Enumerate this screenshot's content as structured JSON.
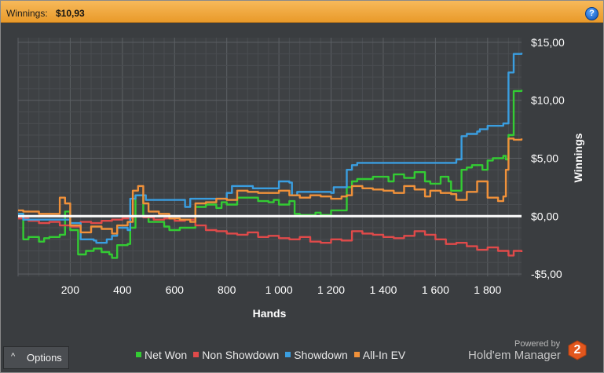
{
  "header": {
    "label": "Winnings:",
    "value": "$10,93",
    "help_icon": "help-icon",
    "help_glyph": "?"
  },
  "chart_data": {
    "type": "line",
    "xlabel": "Hands",
    "ylabel": "Winnings",
    "xlim": [
      0,
      1930
    ],
    "ylim": [
      -5.2,
      15.4
    ],
    "x_ticks": [
      200,
      400,
      600,
      800,
      1000,
      1200,
      1400,
      1600,
      1800
    ],
    "x_tick_labels": [
      "200",
      "400",
      "600",
      "800",
      "1 000",
      "1 200",
      "1 400",
      "1 600",
      "1 800"
    ],
    "y_ticks": [
      15,
      10,
      5,
      0,
      -5
    ],
    "y_tick_labels": [
      "$15,00",
      "$10,00",
      "$5,00",
      "$0,00",
      "-$5,00"
    ],
    "grid": true,
    "legend_position": "bottom",
    "series": [
      {
        "name": "Net Won",
        "color": "#33cc33",
        "x": [
          0,
          20,
          40,
          80,
          100,
          120,
          160,
          180,
          200,
          230,
          260,
          290,
          320,
          350,
          360,
          380,
          420,
          430,
          450,
          480,
          500,
          560,
          580,
          620,
          660,
          680,
          720,
          760,
          780,
          800,
          840,
          880,
          920,
          960,
          980,
          1000,
          1040,
          1060,
          1080,
          1140,
          1160,
          1200,
          1250,
          1260,
          1280,
          1300,
          1360,
          1420,
          1440,
          1480,
          1520,
          1560,
          1580,
          1620,
          1650,
          1660,
          1700,
          1720,
          1740,
          1780,
          1800,
          1820,
          1860,
          1870,
          1880,
          1900,
          1930
        ],
        "y": [
          0.2,
          -2.0,
          -1.8,
          -2.2,
          -1.9,
          -1.8,
          -1.6,
          0.4,
          -1.2,
          -3.3,
          -3.0,
          -2.8,
          -3.1,
          -3.3,
          -3.6,
          -2.5,
          -2.4,
          -1.0,
          1.8,
          0.0,
          -0.5,
          -0.9,
          -1.2,
          -1.0,
          -1.0,
          0.8,
          1.0,
          0.7,
          1.2,
          1.0,
          1.6,
          1.6,
          1.3,
          1.2,
          1.4,
          1.0,
          1.3,
          0.2,
          0.1,
          0.3,
          0.1,
          0.5,
          0.5,
          2.5,
          3.0,
          3.2,
          3.4,
          3.0,
          3.6,
          3.3,
          3.8,
          3.0,
          2.8,
          3.4,
          3.0,
          2.2,
          4.0,
          4.2,
          4.4,
          4.0,
          4.8,
          5.0,
          5.2,
          4.9,
          7.0,
          10.8,
          10.9
        ]
      },
      {
        "name": "Non Showdown",
        "color": "#e04a4a",
        "x": [
          0,
          40,
          80,
          120,
          160,
          200,
          240,
          280,
          320,
          360,
          400,
          440,
          480,
          520,
          560,
          600,
          640,
          680,
          720,
          760,
          800,
          840,
          880,
          920,
          960,
          1000,
          1040,
          1080,
          1120,
          1160,
          1200,
          1240,
          1280,
          1320,
          1360,
          1400,
          1440,
          1480,
          1520,
          1560,
          1600,
          1640,
          1680,
          1720,
          1760,
          1800,
          1840,
          1880,
          1900,
          1930
        ],
        "y": [
          -0.2,
          -0.4,
          -0.6,
          -0.5,
          -0.8,
          -0.9,
          -0.5,
          -0.6,
          -0.4,
          -0.3,
          -0.2,
          0.0,
          -0.1,
          -0.3,
          -0.2,
          -0.4,
          -0.3,
          -0.8,
          -1.2,
          -1.3,
          -1.5,
          -1.6,
          -1.4,
          -1.8,
          -1.7,
          -1.9,
          -2.0,
          -1.8,
          -2.2,
          -2.3,
          -2.0,
          -2.1,
          -1.3,
          -1.5,
          -1.6,
          -1.8,
          -1.9,
          -1.7,
          -1.3,
          -1.6,
          -2.0,
          -2.4,
          -2.3,
          -2.6,
          -2.9,
          -2.7,
          -3.0,
          -3.4,
          -3.0,
          -3.1
        ]
      },
      {
        "name": "Showdown",
        "color": "#3a9ee0",
        "x": [
          0,
          20,
          160,
          200,
          240,
          290,
          300,
          340,
          360,
          380,
          420,
          430,
          450,
          490,
          500,
          640,
          660,
          680,
          800,
          820,
          900,
          1000,
          1040,
          1050,
          1070,
          1200,
          1210,
          1250,
          1260,
          1280,
          1300,
          1380,
          1680,
          1700,
          1720,
          1760,
          1770,
          1800,
          1860,
          1880,
          1900,
          1930
        ],
        "y": [
          0.2,
          -0.3,
          -0.3,
          -0.6,
          -2.0,
          -2.1,
          -2.3,
          -2.0,
          -1.7,
          -1.0,
          -1.2,
          1.5,
          1.8,
          1.4,
          1.4,
          0.8,
          1.5,
          1.5,
          2.0,
          2.6,
          2.4,
          3.0,
          2.9,
          1.8,
          2.1,
          2.0,
          2.5,
          2.5,
          4.0,
          4.4,
          4.6,
          4.6,
          4.9,
          6.9,
          7.1,
          7.3,
          7.5,
          7.8,
          8.0,
          12.4,
          14.0,
          14.1
        ]
      },
      {
        "name": "All-In EV",
        "color": "#f0913a",
        "x": [
          0,
          20,
          80,
          140,
          160,
          180,
          200,
          240,
          280,
          320,
          360,
          380,
          420,
          440,
          460,
          480,
          500,
          540,
          580,
          620,
          660,
          680,
          720,
          760,
          800,
          840,
          880,
          920,
          960,
          1000,
          1040,
          1080,
          1120,
          1160,
          1200,
          1240,
          1260,
          1280,
          1320,
          1360,
          1400,
          1440,
          1480,
          1520,
          1560,
          1580,
          1620,
          1660,
          1680,
          1720,
          1760,
          1800,
          1840,
          1860,
          1870,
          1880,
          1900,
          1930
        ],
        "y": [
          0.5,
          0.4,
          0.2,
          0.2,
          1.6,
          1.1,
          -0.8,
          -1.4,
          -0.9,
          -1.1,
          -1.5,
          -0.8,
          -0.5,
          2.2,
          2.6,
          1.1,
          0.4,
          0.2,
          -0.2,
          -0.3,
          -0.5,
          1.1,
          1.2,
          1.5,
          1.4,
          2.2,
          2.1,
          2.0,
          2.0,
          2.2,
          1.8,
          1.6,
          1.8,
          1.7,
          1.5,
          1.7,
          1.8,
          2.6,
          2.4,
          2.3,
          2.2,
          2.0,
          2.6,
          2.3,
          1.7,
          2.2,
          2.0,
          1.9,
          1.4,
          2.1,
          3.0,
          1.6,
          1.3,
          1.7,
          4.0,
          6.7,
          6.6,
          6.7
        ]
      }
    ]
  },
  "options_button": {
    "label": "Options",
    "chevron": "^"
  },
  "branding": {
    "small": "Powered by",
    "big": "Hold'em Manager",
    "logo_text": "2"
  }
}
